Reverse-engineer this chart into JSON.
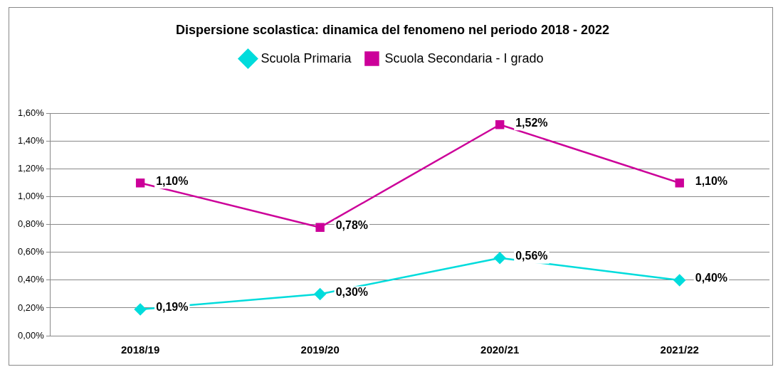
{
  "chart_data": {
    "type": "line",
    "title": "Dispersione scolastica: dinamica del fenomeno nel periodo 2018 - 2022",
    "categories": [
      "2018/19",
      "2019/20",
      "2020/21",
      "2021/22"
    ],
    "series": [
      {
        "name": "Scuola Primaria",
        "color": "#00dcdc",
        "marker": "diamond",
        "values": [
          0.19,
          0.3,
          0.56,
          0.4
        ],
        "value_labels": [
          "0,19%",
          "0,30%",
          "0,56%",
          "0,40%"
        ]
      },
      {
        "name": "Scuola Secondaria - I grado",
        "color": "#cc0099",
        "marker": "square",
        "values": [
          1.1,
          0.78,
          1.52,
          1.1
        ],
        "value_labels": [
          "1,10%",
          "0,78%",
          "1,52%",
          "1,10%"
        ]
      }
    ],
    "ylim": [
      0,
      1.6
    ],
    "yticks": [
      {
        "value": 0,
        "label": "0,00%"
      },
      {
        "value": 0.2,
        "label": "0,20%"
      },
      {
        "value": 0.4,
        "label": "0,40%"
      },
      {
        "value": 0.6,
        "label": "0,60%"
      },
      {
        "value": 0.8,
        "label": "0,80%"
      },
      {
        "value": 1.0,
        "label": "1,00%"
      },
      {
        "value": 1.2,
        "label": "1,20%"
      },
      {
        "value": 1.4,
        "label": "1,40%"
      },
      {
        "value": 1.6,
        "label": "1,60%"
      }
    ],
    "grid": "y",
    "legend": "top"
  }
}
